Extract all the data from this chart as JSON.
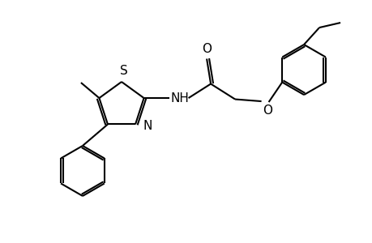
{
  "background_color": "#ffffff",
  "bond_color": "#000000",
  "text_color": "#000000",
  "lw": 1.5,
  "dbo": 0.055,
  "figsize": [
    4.6,
    3.0
  ],
  "dpi": 100,
  "xlim": [
    0,
    9.2
  ],
  "ylim": [
    0,
    6.0
  ]
}
